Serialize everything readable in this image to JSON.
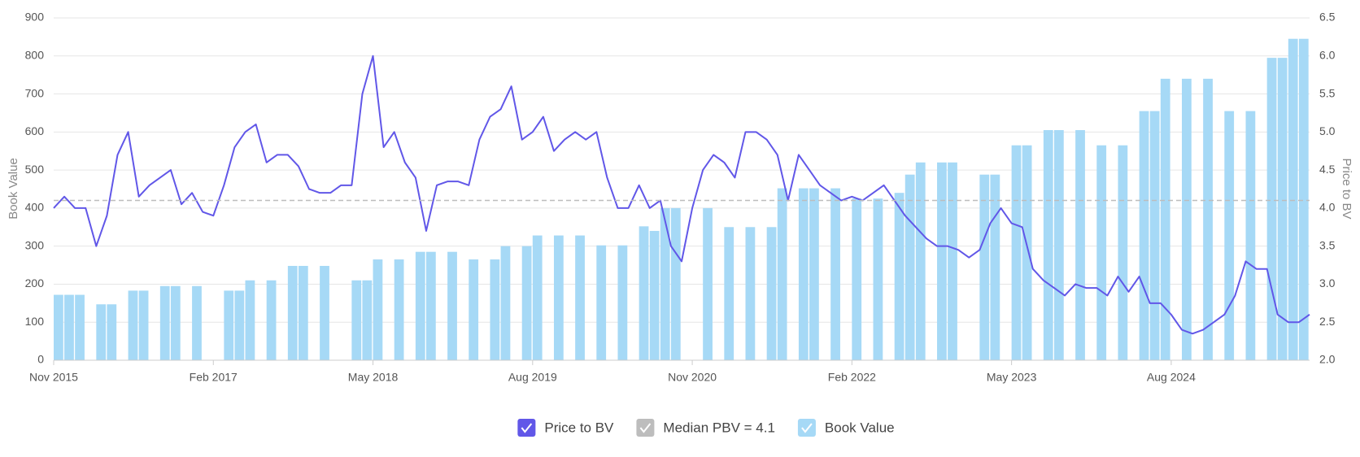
{
  "chart_data": {
    "type": "combo",
    "y_label": "Book Value",
    "y2_label": "Price to BV",
    "xlim": [
      "2015-11",
      "2025-09"
    ],
    "xticks": [
      {
        "value": "2015-11",
        "label": "Nov 2015"
      },
      {
        "value": "2017-02",
        "label": "Feb 2017"
      },
      {
        "value": "2018-05",
        "label": "May 2018"
      },
      {
        "value": "2019-08",
        "label": "Aug 2019"
      },
      {
        "value": "2020-11",
        "label": "Nov 2020"
      },
      {
        "value": "2022-02",
        "label": "Feb 2022"
      },
      {
        "value": "2023-05",
        "label": "May 2023"
      },
      {
        "value": "2024-08",
        "label": "Aug 2024"
      }
    ],
    "ylim": [
      0,
      900
    ],
    "yticks": [
      0,
      100,
      200,
      300,
      400,
      500,
      600,
      700,
      800,
      900
    ],
    "y2lim": [
      2,
      6.5
    ],
    "y2ticks": [
      {
        "value": 2,
        "label": "2.0"
      },
      2.5,
      {
        "value": 3,
        "label": "3.0"
      },
      3.5,
      {
        "value": 4,
        "label": "4.0"
      },
      4.5,
      {
        "value": 5,
        "label": "5.0"
      },
      5.5,
      {
        "value": 6,
        "label": "6.0"
      },
      6.5
    ],
    "grid": true,
    "series": [
      {
        "name": "Price to BV",
        "type": "line",
        "axis": "y2",
        "color": "#6157e8",
        "x": [
          "2015-11",
          "2015-12",
          "2016-01",
          "2016-02",
          "2016-03",
          "2016-04",
          "2016-05",
          "2016-06",
          "2016-07",
          "2016-08",
          "2016-09",
          "2016-10",
          "2016-11",
          "2016-12",
          "2017-01",
          "2017-02",
          "2017-03",
          "2017-04",
          "2017-05",
          "2017-06",
          "2017-07",
          "2017-08",
          "2017-09",
          "2017-10",
          "2017-11",
          "2017-12",
          "2018-01",
          "2018-02",
          "2018-03",
          "2018-04",
          "2018-05",
          "2018-06",
          "2018-07",
          "2018-08",
          "2018-09",
          "2018-10",
          "2018-11",
          "2018-12",
          "2019-01",
          "2019-02",
          "2019-03",
          "2019-04",
          "2019-05",
          "2019-06",
          "2019-07",
          "2019-08",
          "2019-09",
          "2019-10",
          "2019-11",
          "2019-12",
          "2020-01",
          "2020-02",
          "2020-03",
          "2020-04",
          "2020-05",
          "2020-06",
          "2020-07",
          "2020-08",
          "2020-09",
          "2020-10",
          "2020-11",
          "2020-12",
          "2021-01",
          "2021-02",
          "2021-03",
          "2021-04",
          "2021-05",
          "2021-06",
          "2021-07",
          "2021-08",
          "2021-09",
          "2021-10",
          "2021-11",
          "2021-12",
          "2022-01",
          "2022-02",
          "2022-03",
          "2022-04",
          "2022-05",
          "2022-06",
          "2022-07",
          "2022-08",
          "2022-09",
          "2022-10",
          "2022-11",
          "2022-12",
          "2023-01",
          "2023-02",
          "2023-03",
          "2023-04",
          "2023-05",
          "2023-06",
          "2023-07",
          "2023-08",
          "2023-09",
          "2023-10",
          "2023-11",
          "2023-12",
          "2024-01",
          "2024-02",
          "2024-03",
          "2024-04",
          "2024-05",
          "2024-06",
          "2024-07",
          "2024-08",
          "2024-09",
          "2024-10",
          "2024-11",
          "2024-12",
          "2025-01",
          "2025-02",
          "2025-03",
          "2025-04",
          "2025-05",
          "2025-06",
          "2025-07",
          "2025-08",
          "2025-09"
        ],
        "values": [
          4.0,
          4.15,
          4.0,
          4.0,
          3.5,
          3.9,
          4.7,
          5.0,
          4.15,
          4.3,
          4.4,
          4.5,
          4.05,
          4.2,
          3.95,
          3.9,
          4.3,
          4.8,
          5.0,
          5.1,
          4.6,
          4.7,
          4.7,
          4.55,
          4.25,
          4.2,
          4.2,
          4.3,
          4.3,
          5.5,
          6.0,
          4.8,
          5.0,
          4.6,
          4.4,
          3.7,
          4.3,
          4.35,
          4.35,
          4.3,
          4.9,
          5.2,
          5.3,
          5.6,
          4.9,
          5.0,
          5.2,
          4.75,
          4.9,
          5.0,
          4.9,
          5.0,
          4.4,
          4.0,
          4.0,
          4.3,
          4.0,
          4.1,
          3.5,
          3.3,
          4.0,
          4.5,
          4.7,
          4.6,
          4.4,
          5.0,
          5.0,
          4.9,
          4.7,
          4.1,
          4.7,
          4.5,
          4.3,
          4.2,
          4.1,
          4.15,
          4.1,
          4.2,
          4.3,
          4.1,
          3.9,
          3.75,
          3.6,
          3.5,
          3.5,
          3.45,
          3.35,
          3.45,
          3.8,
          4.0,
          3.8,
          3.75,
          3.2,
          3.05,
          2.95,
          2.85,
          3.0,
          2.95,
          2.95,
          2.85,
          3.1,
          2.9,
          3.1,
          2.75,
          2.75,
          2.6,
          2.4,
          2.35,
          2.4,
          2.5,
          2.6,
          2.85,
          3.3,
          3.2,
          3.2,
          2.6,
          2.5,
          2.5,
          2.6
        ]
      },
      {
        "name": "Median PBV = 4.1",
        "type": "hline",
        "axis": "y2",
        "color": "#bdbdbd",
        "value": 4.1
      },
      {
        "name": "Book Value",
        "type": "bar",
        "color": "#a6d9f6",
        "x": [
          "2015-11",
          "2015-12",
          "2016-01",
          "2016-03",
          "2016-04",
          "2016-06",
          "2016-07",
          "2016-09",
          "2016-10",
          "2016-12",
          "2017-03",
          "2017-04",
          "2017-05",
          "2017-07",
          "2017-09",
          "2017-10",
          "2017-12",
          "2018-03",
          "2018-04",
          "2018-05",
          "2018-07",
          "2018-09",
          "2018-10",
          "2018-12",
          "2019-02",
          "2019-04",
          "2019-05",
          "2019-07",
          "2019-08",
          "2019-10",
          "2019-12",
          "2020-02",
          "2020-04",
          "2020-06",
          "2020-07",
          "2020-08",
          "2020-09",
          "2020-12",
          "2021-02",
          "2021-04",
          "2021-06",
          "2021-07",
          "2021-09",
          "2021-10",
          "2021-12",
          "2022-02",
          "2022-04",
          "2022-06",
          "2022-07",
          "2022-08",
          "2022-10",
          "2022-11",
          "2023-02",
          "2023-03",
          "2023-05",
          "2023-06",
          "2023-08",
          "2023-09",
          "2023-11",
          "2024-01",
          "2024-03",
          "2024-05",
          "2024-06",
          "2024-07",
          "2024-09",
          "2024-11",
          "2025-01",
          "2025-03",
          "2025-05",
          "2025-06",
          "2025-07",
          "2025-08"
        ],
        "values": [
          172,
          172,
          172,
          147,
          147,
          183,
          183,
          195,
          195,
          195,
          183,
          183,
          210,
          210,
          248,
          248,
          248,
          210,
          210,
          265,
          265,
          285,
          285,
          285,
          265,
          265,
          300,
          300,
          328,
          328,
          328,
          302,
          302,
          352,
          340,
          400,
          400,
          400,
          350,
          350,
          350,
          452,
          452,
          452,
          452,
          425,
          425,
          440,
          488,
          520,
          520,
          520,
          488,
          488,
          565,
          565,
          605,
          605,
          605,
          565,
          565,
          655,
          655,
          740,
          740,
          740,
          655,
          655,
          795,
          795,
          845,
          845
        ]
      }
    ]
  }
}
